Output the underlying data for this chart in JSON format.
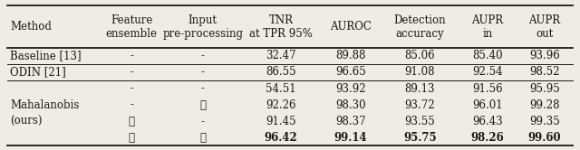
{
  "col_headers": [
    "Method",
    "Feature\nensemble",
    "Input\npre-processing",
    "TNR\nat TPR 95%",
    "AUROC",
    "Detection\naccuracy",
    "AUPR\nin",
    "AUPR\nout"
  ],
  "rows": [
    [
      "Baseline [13]",
      "-",
      "-",
      "32.47",
      "89.88",
      "85.06",
      "85.40",
      "93.96"
    ],
    [
      "ODIN [21]",
      "-",
      "-",
      "86.55",
      "96.65",
      "91.08",
      "92.54",
      "98.52"
    ],
    [
      "",
      "-",
      "-",
      "54.51",
      "93.92",
      "89.13",
      "91.56",
      "95.95"
    ],
    [
      "Mahalanobis",
      "-",
      "✓",
      "92.26",
      "98.30",
      "93.72",
      "96.01",
      "99.28"
    ],
    [
      "(ours)",
      "✓",
      "-",
      "91.45",
      "98.37",
      "93.55",
      "96.43",
      "99.35"
    ],
    [
      "",
      "✓",
      "✓",
      "96.42",
      "99.14",
      "95.75",
      "98.26",
      "99.60"
    ]
  ],
  "bold_rows": [
    5
  ],
  "background_color": "#f0ece4",
  "font_color": "#1a1a1a",
  "font_size": 8.5
}
